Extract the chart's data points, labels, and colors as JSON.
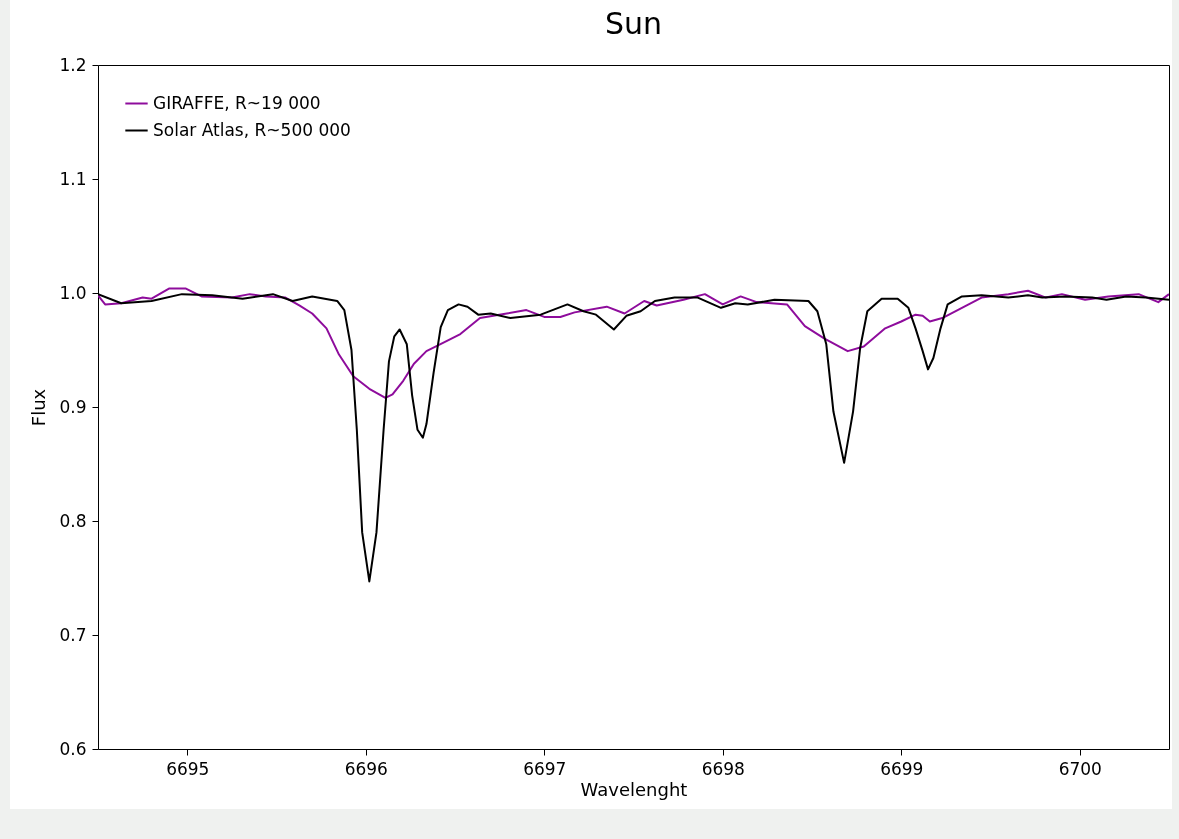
{
  "chart_data": {
    "type": "line",
    "title": "Sun",
    "xlabel": "Wavelenght",
    "ylabel": "Flux",
    "xlim": [
      6694.5,
      6700.5
    ],
    "xticks": [
      6695,
      6696,
      6697,
      6698,
      6699,
      6700
    ],
    "ylim": [
      0.6,
      1.2
    ],
    "yticks": [
      0.6,
      0.7,
      0.8,
      0.9,
      {
        "value": 1,
        "label": "1.0"
      },
      1.1,
      1.2
    ],
    "grid": false,
    "legend": "top left",
    "series": [
      {
        "name": "GIRAFFE, R~19 000",
        "color": "#8e0c9c",
        "x": [
          6694.5,
          6694.54,
          6694.63,
          6694.75,
          6694.8,
          6694.9,
          6694.99,
          6695.08,
          6695.25,
          6695.35,
          6695.44,
          6695.55,
          6695.63,
          6695.7,
          6695.78,
          6695.85,
          6695.93,
          6696.02,
          6696.11,
          6696.15,
          6696.21,
          6696.27,
          6696.34,
          6696.43,
          6696.53,
          6696.64,
          6696.79,
          6696.9,
          6697.0,
          6697.09,
          6697.17,
          6697.35,
          6697.45,
          6697.56,
          6697.63,
          6697.78,
          6697.9,
          6698.0,
          6698.1,
          6698.19,
          6698.36,
          6698.46,
          6698.57,
          6698.7,
          6698.79,
          6698.91,
          6699.0,
          6699.08,
          6699.12,
          6699.16,
          6699.23,
          6699.34,
          6699.45,
          6699.6,
          6699.71,
          6699.81,
          6699.9,
          6700.03,
          6700.16,
          6700.33,
          6700.44,
          6700.5
        ],
        "values": [
          0.998,
          0.99,
          0.991,
          0.996,
          0.995,
          1.004,
          1.004,
          0.997,
          0.996,
          0.999,
          0.997,
          0.996,
          0.989,
          0.982,
          0.969,
          0.946,
          0.927,
          0.916,
          0.908,
          0.911,
          0.923,
          0.938,
          0.949,
          0.956,
          0.964,
          0.978,
          0.982,
          0.985,
          0.979,
          0.979,
          0.983,
          0.988,
          0.982,
          0.993,
          0.989,
          0.994,
          0.999,
          0.99,
          0.997,
          0.992,
          0.99,
          0.971,
          0.96,
          0.949,
          0.953,
          0.969,
          0.975,
          0.981,
          0.98,
          0.975,
          0.978,
          0.987,
          0.996,
          0.999,
          1.002,
          0.996,
          0.999,
          0.994,
          0.997,
          0.999,
          0.992,
          0.999
        ]
      },
      {
        "name": "Solar Atlas, R~500 000",
        "color": "#000000",
        "x": [
          6694.5,
          6694.63,
          6694.8,
          6694.97,
          6695.14,
          6695.31,
          6695.48,
          6695.59,
          6695.7,
          6695.84,
          6695.88,
          6695.92,
          6695.95,
          6695.98,
          6696.02,
          6696.06,
          6696.1,
          6696.13,
          6696.16,
          6696.19,
          6696.23,
          6696.26,
          6696.29,
          6696.32,
          6696.34,
          6696.38,
          6696.42,
          6696.46,
          6696.52,
          6696.57,
          6696.63,
          6696.7,
          6696.81,
          6696.98,
          6697.13,
          6697.22,
          6697.29,
          6697.39,
          6697.46,
          6697.54,
          6697.62,
          6697.73,
          6697.86,
          6697.99,
          6698.07,
          6698.14,
          6698.29,
          6698.48,
          6698.53,
          6698.58,
          6698.62,
          6698.68,
          6698.73,
          6698.77,
          6698.81,
          6698.89,
          6698.98,
          6699.04,
          6699.08,
          6699.12,
          6699.15,
          6699.18,
          6699.22,
          6699.26,
          6699.34,
          6699.45,
          6699.6,
          6699.71,
          6699.79,
          6699.92,
          6700.07,
          6700.15,
          6700.26,
          6700.37,
          6700.5
        ],
        "values": [
          0.999,
          0.991,
          0.993,
          0.999,
          0.998,
          0.995,
          0.999,
          0.993,
          0.997,
          0.993,
          0.985,
          0.95,
          0.88,
          0.79,
          0.747,
          0.79,
          0.88,
          0.94,
          0.962,
          0.968,
          0.955,
          0.91,
          0.88,
          0.873,
          0.885,
          0.93,
          0.97,
          0.985,
          0.99,
          0.988,
          0.981,
          0.982,
          0.978,
          0.981,
          0.99,
          0.984,
          0.981,
          0.968,
          0.98,
          0.984,
          0.993,
          0.996,
          0.996,
          0.987,
          0.991,
          0.99,
          0.994,
          0.993,
          0.984,
          0.955,
          0.896,
          0.851,
          0.896,
          0.952,
          0.984,
          0.995,
          0.995,
          0.987,
          0.969,
          0.949,
          0.933,
          0.943,
          0.969,
          0.99,
          0.997,
          0.998,
          0.996,
          0.998,
          0.996,
          0.997,
          0.996,
          0.994,
          0.997,
          0.996,
          0.994
        ]
      }
    ]
  }
}
